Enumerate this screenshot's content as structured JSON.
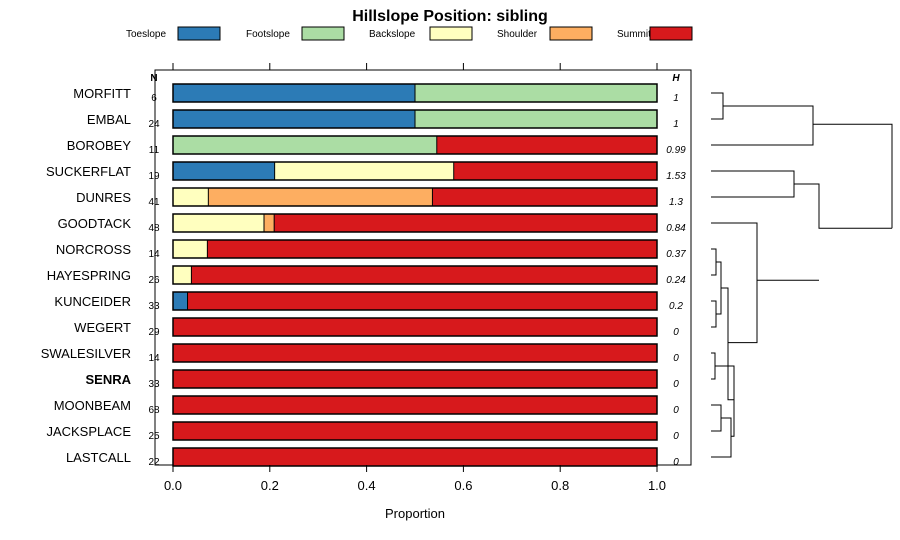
{
  "chart_data": {
    "type": "bar",
    "orientation": "horizontal",
    "stacked": true,
    "title": "Hillslope Position: sibling",
    "xlabel": "Proportion",
    "xlim": [
      0,
      1
    ],
    "x_ticks": [
      "0.0",
      "0.2",
      "0.4",
      "0.6",
      "0.8",
      "1.0"
    ],
    "n_header": "N",
    "h_header": "H",
    "legend_position": "top",
    "categories": [
      "MORFITT",
      "EMBAL",
      "BOROBEY",
      "SUCKERFLAT",
      "DUNRES",
      "GOODTACK",
      "NORCROSS",
      "HAYESPRING",
      "KUNCEIDER",
      "WEGERT",
      "SWALESILVER",
      "SENRA",
      "MOONBEAM",
      "JACKSPLACE",
      "LASTCALL"
    ],
    "highlighted": "SENRA",
    "n": [
      "6",
      "24",
      "11",
      "19",
      "41",
      "48",
      "14",
      "26",
      "33",
      "29",
      "14",
      "33",
      "68",
      "25",
      "22"
    ],
    "h": [
      "1",
      "1",
      "0.99",
      "1.53",
      "1.3",
      "0.84",
      "0.37",
      "0.24",
      "0.2",
      "0",
      "0",
      "0",
      "0",
      "0",
      "0"
    ],
    "series": [
      {
        "name": "Toeslope",
        "color": "#2C7BB6",
        "values": [
          0.5,
          0.5,
          0,
          0.21,
          0,
          0,
          0,
          0,
          0.03,
          0,
          0,
          0,
          0,
          0,
          0
        ]
      },
      {
        "name": "Footslope",
        "color": "#ABDDA4",
        "values": [
          0.5,
          0.5,
          0.545,
          0,
          0,
          0,
          0,
          0,
          0,
          0,
          0,
          0,
          0,
          0,
          0
        ]
      },
      {
        "name": "Backslope",
        "color": "#FFFFBF",
        "values": [
          0,
          0,
          0,
          0.37,
          0.073,
          0.188,
          0.071,
          0.038,
          0,
          0,
          0,
          0,
          0,
          0,
          0
        ]
      },
      {
        "name": "Shoulder",
        "color": "#FDAE61",
        "values": [
          0,
          0,
          0,
          0,
          0.463,
          0.021,
          0,
          0,
          0,
          0,
          0,
          0,
          0,
          0,
          0
        ]
      },
      {
        "name": "Summit",
        "color": "#D7191C",
        "values": [
          0,
          0,
          0.455,
          0.42,
          0.464,
          0.791,
          0.929,
          0.962,
          0.97,
          1,
          1,
          1,
          1,
          1,
          1
        ]
      }
    ]
  }
}
